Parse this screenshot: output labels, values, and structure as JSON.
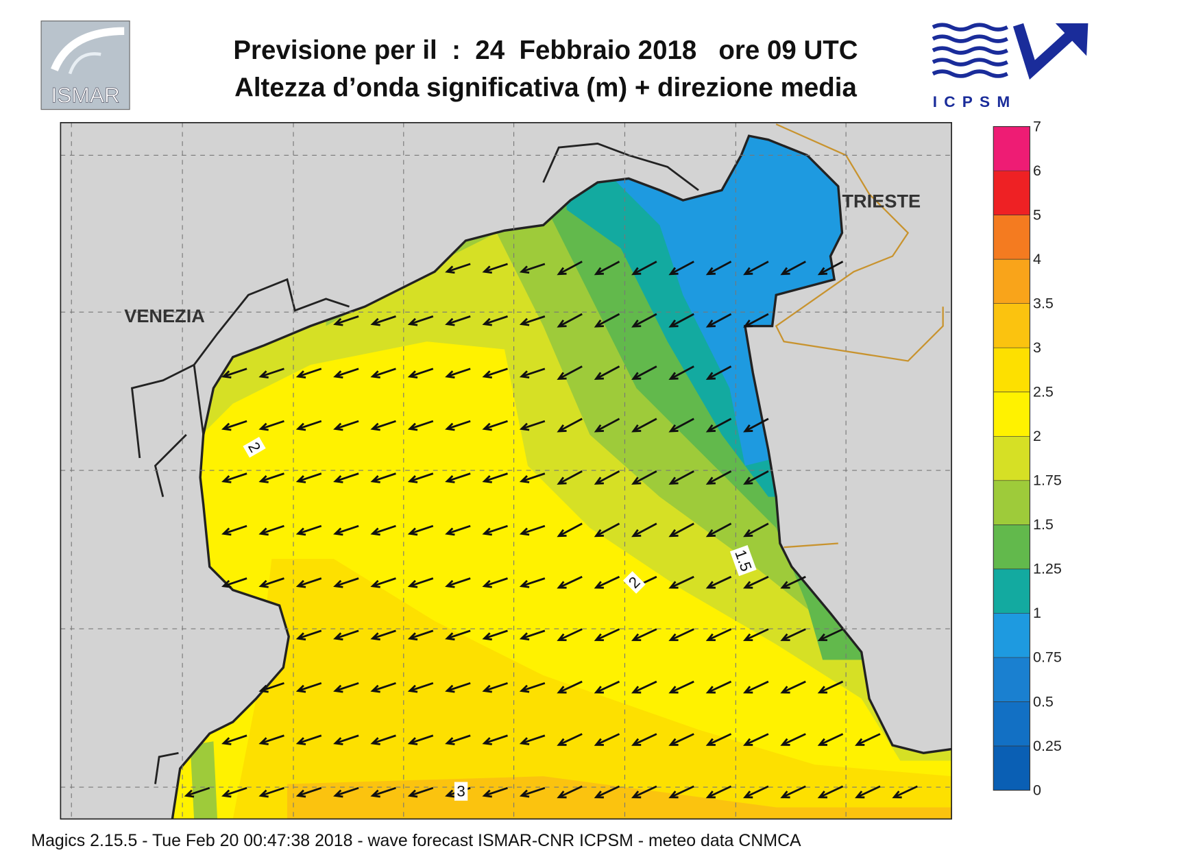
{
  "header": {
    "title_line1": "Previsione per il  :  24  Febbraio 2018   ore 09 UTC",
    "title_line2": "Altezza d’onda significativa (m) + direzione media",
    "logo_left": "ISMAR",
    "logo_right": "ICPSM"
  },
  "map": {
    "place_labels": [
      "VENEZIA",
      "TRIESTE"
    ],
    "contour_labels": [
      2,
      1.5,
      2,
      3
    ]
  },
  "colorbar": {
    "levels": [
      0,
      0.25,
      0.5,
      0.75,
      1,
      1.25,
      1.5,
      1.75,
      2,
      2.5,
      3,
      3.5,
      4,
      5,
      6,
      7
    ],
    "colors": [
      "#0a5fb4",
      "#1270c4",
      "#1a80d0",
      "#1e9ae0",
      "#13aaa0",
      "#62b94c",
      "#9ecb3a",
      "#d6e025",
      "#fff200",
      "#fde000",
      "#fbc30f",
      "#f9a41a",
      "#f47b20",
      "#ee2124",
      "#ee1c74"
    ]
  },
  "footer": "Magics 2.15.5 - Tue Feb 20 00:47:38 2018 - wave forecast  ISMAR-CNR  ICPSM - meteo data   CNMCA"
}
